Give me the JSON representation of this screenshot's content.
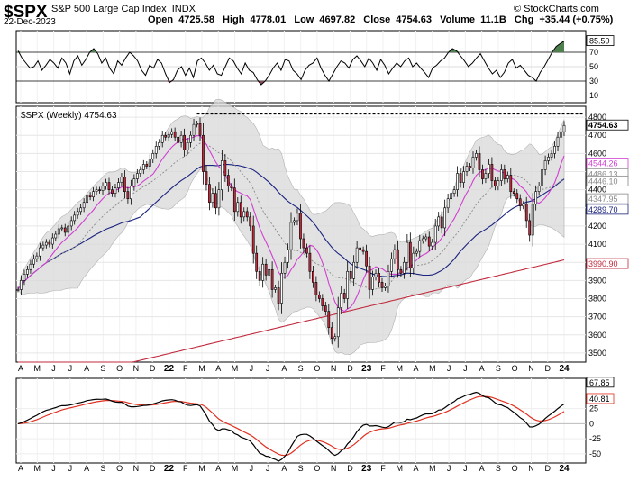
{
  "header": {
    "symbol": "$SPX",
    "name": "S&P 500 Large Cap Index",
    "exchange": "INDX",
    "date": "22-Dec-2023",
    "open_label": "Open",
    "open": "4725.58",
    "high_label": "High",
    "high": "4778.01",
    "low_label": "Low",
    "low": "4697.82",
    "close_label": "Close",
    "close": "4754.63",
    "volume_label": "Volume",
    "volume": "11.1B",
    "chg_label": "Chg",
    "chg": "+35.44 (+0.75%)",
    "watermark": "© StockCharts.com"
  },
  "main_label": "$SPX (Weekly) 4754.63",
  "colors": {
    "up": "#ffffff",
    "down": "#c0283c",
    "candle_outline": "#000000",
    "rsi_line": "#000000",
    "rsi_fill_high": "#4f7f4f",
    "rsi_fill_low": "#8a4a5a",
    "ma_short": "#d040d0",
    "ma_mid": "#888888",
    "ma_long": "#1a237e",
    "ma_200": "#c0283c",
    "band_fill": "#d9d9d9",
    "macd": "#000000",
    "signal": "#e03020"
  },
  "chart_data": [
    {
      "type": "line",
      "name": "RSI",
      "ylim": [
        0,
        100
      ],
      "levels": [
        70,
        30
      ],
      "ticks": [
        "85.50",
        "70",
        "50",
        "30",
        "10"
      ],
      "current": "85.50",
      "values": [
        72,
        62,
        55,
        48,
        50,
        58,
        45,
        52,
        60,
        55,
        48,
        62,
        55,
        40,
        58,
        65,
        52,
        60,
        70,
        75,
        68,
        55,
        62,
        48,
        40,
        58,
        52,
        62,
        70,
        65,
        58,
        45,
        38,
        52,
        48,
        60,
        55,
        40,
        28,
        32,
        45,
        50,
        38,
        48,
        35,
        58,
        62,
        55,
        45,
        52,
        40,
        38,
        50,
        62,
        58,
        48,
        40,
        55,
        45,
        42,
        32,
        25,
        30,
        38,
        48,
        55,
        45,
        60,
        58,
        45,
        40,
        32,
        45,
        52,
        55,
        62,
        48,
        38,
        30,
        40,
        50,
        58,
        55,
        48,
        60,
        65,
        58,
        50,
        62,
        55,
        45,
        60,
        52,
        40,
        48,
        55,
        50,
        58,
        62,
        50,
        55,
        48,
        42,
        35,
        48,
        52,
        58,
        62,
        70,
        75,
        72,
        65,
        58,
        50,
        55,
        62,
        68,
        58,
        48,
        40,
        45,
        35,
        42,
        55,
        60,
        48,
        52,
        45,
        38,
        35,
        30,
        42,
        50,
        60,
        70,
        78,
        82,
        85.5
      ]
    },
    {
      "type": "candlestick",
      "name": "$SPX (Weekly)",
      "ylim": [
        3450,
        4860
      ],
      "yticks": [
        3500,
        3600,
        3700,
        3800,
        3900,
        4000,
        4100,
        4200,
        4300,
        4400,
        4500,
        4600,
        4700,
        4800
      ],
      "value_labels": [
        "4754.63",
        "4544.26",
        "4486.13",
        "4446.10",
        "4347.95",
        "4289.70",
        "3990.90"
      ],
      "start_close": 3850,
      "closes": [
        3850,
        3900,
        3935,
        3960,
        3990,
        4020,
        4035,
        4080,
        4095,
        4110,
        4100,
        4135,
        4155,
        4185,
        4190,
        4165,
        4200,
        4230,
        4260,
        4280,
        4300,
        4330,
        4370,
        4360,
        4390,
        4400,
        4395,
        4420,
        4440,
        4400,
        4380,
        4410,
        4440,
        4470,
        4390,
        4350,
        4420,
        4460,
        4490,
        4510,
        4540,
        4530,
        4570,
        4600,
        4640,
        4660,
        4700,
        4690,
        4705,
        4720,
        4690,
        4660,
        4700,
        4620,
        4660,
        4700,
        4760,
        4765,
        4700,
        4500,
        4430,
        4330,
        4380,
        4300,
        4400,
        4560,
        4480,
        4420,
        4410,
        4280,
        4330,
        4250,
        4280,
        4250,
        4200,
        4050,
        3950,
        3900,
        3990,
        3930,
        3960,
        3850,
        3860,
        3775,
        3940,
        4000,
        4070,
        4220,
        4230,
        4270,
        4130,
        4080,
        4050,
        3950,
        3890,
        3820,
        3800,
        3760,
        3730,
        3640,
        3580,
        3590,
        3750,
        3830,
        3800,
        3950,
        3910,
        4000,
        4080,
        4070,
        4060,
        3980,
        3850,
        3920,
        3940,
        3890,
        3860,
        3870,
        3950,
        4020,
        4070,
        3960,
        3940,
        4000,
        4110,
        3970,
        4050,
        4060,
        4120,
        4130,
        4140,
        4090,
        4110,
        4200,
        4250,
        4190,
        4300,
        4350,
        4380,
        4400,
        4490,
        4440,
        4500,
        4530,
        4520,
        4580,
        4600,
        4510,
        4460,
        4490,
        4540,
        4450,
        4420,
        4450,
        4510,
        4460,
        4480,
        4390,
        4380,
        4350,
        4310,
        4320,
        4230,
        4150,
        4320,
        4390,
        4420,
        4510,
        4560,
        4580,
        4600,
        4640,
        4690,
        4720,
        4754.63
      ],
      "series": [
        {
          "name": "MA short",
          "color": "#d040d0"
        },
        {
          "name": "MA mid",
          "color": "#888888"
        },
        {
          "name": "MA long",
          "color": "#1a237e"
        },
        {
          "name": "MA 200",
          "color": "#c0283c"
        }
      ]
    },
    {
      "type": "line",
      "name": "MACD",
      "ylim": [
        -65,
        75
      ],
      "ticks": [
        "67.85",
        "40.81",
        "25",
        "0",
        "-25",
        "-50"
      ],
      "current": [
        "67.85",
        "40.81"
      ]
    }
  ],
  "xaxis": {
    "months": [
      "A",
      "M",
      "J",
      "J",
      "A",
      "S",
      "O",
      "N",
      "D",
      "22",
      "F",
      "M",
      "A",
      "M",
      "J",
      "J",
      "A",
      "S",
      "O",
      "N",
      "D",
      "23",
      "F",
      "M",
      "A",
      "M",
      "J",
      "J",
      "A",
      "S",
      "O",
      "N",
      "D",
      "24"
    ]
  }
}
